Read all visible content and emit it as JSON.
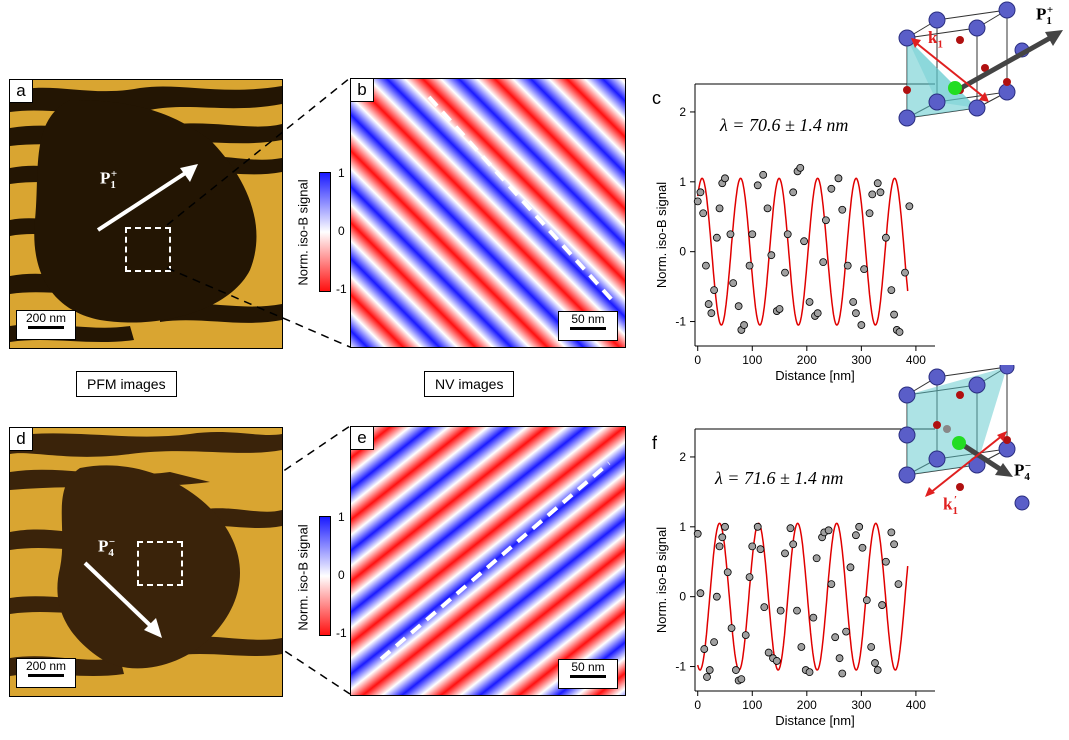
{
  "panels": {
    "a": {
      "label": "a",
      "scalebar": "200 nm"
    },
    "b": {
      "label": "b",
      "scalebar": "50 nm"
    },
    "c": {
      "label": "c",
      "lambda_text": "λ = 70.6 ± 1.4 nm"
    },
    "d": {
      "label": "d",
      "scalebar": "200 nm"
    },
    "e": {
      "label": "e",
      "scalebar": "50 nm"
    },
    "f": {
      "label": "f",
      "lambda_text": "λ = 71.6 ± 1.4 nm"
    }
  },
  "captions": {
    "pfm": "PFM images",
    "nv": "NV images"
  },
  "pol_labels": {
    "p1": "P",
    "p1_sub": "1",
    "p1_sup": "+",
    "p4": "P",
    "p4_sub": "4",
    "p4_sup": "−",
    "k1": "k",
    "k1_sub": "1",
    "k1p_sub": "1",
    "k1p_prime": "′"
  },
  "colorbar": {
    "label": "Norm. iso-B signal",
    "ticks": [
      "1",
      "0",
      "-1"
    ]
  },
  "colors": {
    "pfm_bright": "#d9a531",
    "pfm_dark": "#2a1a05",
    "nv_red": "#ff1010",
    "nv_blue": "#1a1aff",
    "fit": "#e00000",
    "atom": "#5a5ec8",
    "cell_plane": "#5cc8cc",
    "arrow_red": "#e02020"
  },
  "chart_data": [
    {
      "type": "scatter",
      "panel": "c",
      "title": "",
      "xlabel": "Distance [nm]",
      "ylabel": "Norm. iso-B signal",
      "xlim": [
        -5,
        435
      ],
      "ylim": [
        -1.35,
        2.4
      ],
      "xticks": [
        0,
        100,
        200,
        300,
        400
      ],
      "yticks": [
        -1,
        0,
        1,
        2
      ],
      "fit": {
        "amplitude": 1.05,
        "period": 70.6,
        "phase_x0": 8
      },
      "points": [
        [
          0,
          0.72
        ],
        [
          5,
          0.85
        ],
        [
          10,
          0.55
        ],
        [
          15,
          -0.2
        ],
        [
          20,
          -0.75
        ],
        [
          25,
          -0.88
        ],
        [
          30,
          -0.55
        ],
        [
          35,
          0.2
        ],
        [
          40,
          0.62
        ],
        [
          45,
          0.98
        ],
        [
          50,
          1.05
        ],
        [
          60,
          0.25
        ],
        [
          65,
          -0.45
        ],
        [
          75,
          -0.78
        ],
        [
          80,
          -1.12
        ],
        [
          85,
          -1.05
        ],
        [
          95,
          -0.2
        ],
        [
          100,
          0.25
        ],
        [
          110,
          0.95
        ],
        [
          120,
          1.1
        ],
        [
          128,
          0.62
        ],
        [
          135,
          -0.05
        ],
        [
          145,
          -0.85
        ],
        [
          150,
          -0.82
        ],
        [
          160,
          -0.3
        ],
        [
          165,
          0.25
        ],
        [
          175,
          0.85
        ],
        [
          183,
          1.15
        ],
        [
          188,
          1.2
        ],
        [
          195,
          0.15
        ],
        [
          205,
          -0.72
        ],
        [
          215,
          -0.92
        ],
        [
          220,
          -0.88
        ],
        [
          230,
          -0.15
        ],
        [
          235,
          0.45
        ],
        [
          245,
          0.9
        ],
        [
          258,
          1.05
        ],
        [
          265,
          0.6
        ],
        [
          275,
          -0.2
        ],
        [
          285,
          -0.72
        ],
        [
          290,
          -0.88
        ],
        [
          300,
          -1.05
        ],
        [
          305,
          -0.25
        ],
        [
          315,
          0.55
        ],
        [
          320,
          0.82
        ],
        [
          330,
          0.98
        ],
        [
          335,
          0.85
        ],
        [
          345,
          0.2
        ],
        [
          355,
          -0.55
        ],
        [
          360,
          -0.9
        ],
        [
          365,
          -1.12
        ],
        [
          370,
          -1.15
        ],
        [
          380,
          -0.3
        ],
        [
          388,
          0.65
        ]
      ]
    },
    {
      "type": "scatter",
      "panel": "f",
      "title": "",
      "xlabel": "Distance [nm]",
      "ylabel": "Norm. iso-B signal",
      "xlim": [
        -5,
        435
      ],
      "ylim": [
        -1.35,
        2.4
      ],
      "xticks": [
        0,
        100,
        200,
        300,
        400
      ],
      "yticks": [
        -1,
        0,
        1,
        2
      ],
      "fit": {
        "amplitude": 1.05,
        "period": 71.6,
        "phase_x0": 40
      },
      "points": [
        [
          0,
          0.9
        ],
        [
          5,
          0.05
        ],
        [
          12,
          -0.75
        ],
        [
          17,
          -1.15
        ],
        [
          22,
          -1.05
        ],
        [
          30,
          -0.65
        ],
        [
          35,
          0.0
        ],
        [
          40,
          0.72
        ],
        [
          45,
          0.85
        ],
        [
          50,
          1.0
        ],
        [
          55,
          0.35
        ],
        [
          62,
          -0.45
        ],
        [
          70,
          -1.05
        ],
        [
          75,
          -1.2
        ],
        [
          80,
          -1.18
        ],
        [
          88,
          -0.55
        ],
        [
          95,
          0.28
        ],
        [
          100,
          0.72
        ],
        [
          110,
          1.0
        ],
        [
          115,
          0.68
        ],
        [
          122,
          -0.15
        ],
        [
          130,
          -0.8
        ],
        [
          138,
          -0.88
        ],
        [
          145,
          -0.92
        ],
        [
          152,
          -0.2
        ],
        [
          160,
          0.62
        ],
        [
          170,
          0.98
        ],
        [
          175,
          0.75
        ],
        [
          182,
          -0.2
        ],
        [
          190,
          -0.72
        ],
        [
          198,
          -1.05
        ],
        [
          205,
          -1.08
        ],
        [
          212,
          -0.3
        ],
        [
          218,
          0.55
        ],
        [
          228,
          0.85
        ],
        [
          232,
          0.92
        ],
        [
          240,
          0.95
        ],
        [
          245,
          0.18
        ],
        [
          252,
          -0.58
        ],
        [
          260,
          -0.88
        ],
        [
          265,
          -1.1
        ],
        [
          272,
          -0.5
        ],
        [
          280,
          0.42
        ],
        [
          290,
          0.88
        ],
        [
          296,
          1.0
        ],
        [
          302,
          0.7
        ],
        [
          310,
          -0.05
        ],
        [
          318,
          -0.72
        ],
        [
          325,
          -0.95
        ],
        [
          330,
          -1.05
        ],
        [
          338,
          -0.12
        ],
        [
          345,
          0.5
        ],
        [
          355,
          0.92
        ],
        [
          360,
          0.75
        ],
        [
          368,
          0.18
        ]
      ]
    }
  ]
}
